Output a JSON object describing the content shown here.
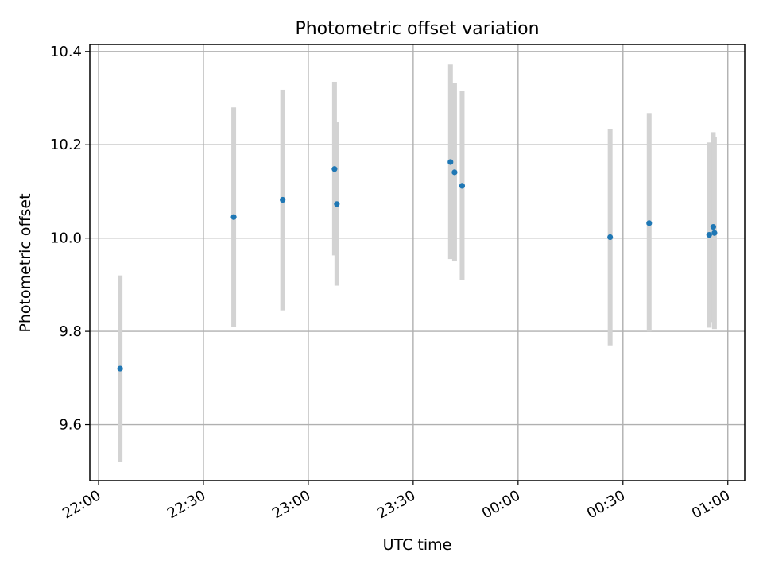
{
  "chart_data": {
    "type": "scatter",
    "title": "Photometric offset variation",
    "xlabel": "UTC time",
    "ylabel": "Photometric offset",
    "x_axis_type": "time",
    "x_ticks": [
      "22:00",
      "22:30",
      "23:00",
      "23:30",
      "00:00",
      "00:30",
      "01:00"
    ],
    "xlim": [
      "21:57:30",
      "01:04:50"
    ],
    "ylim": [
      9.48,
      10.415
    ],
    "y_ticks": [
      9.6,
      9.8,
      10.0,
      10.2,
      10.4
    ],
    "y_tick_labels": [
      "9.6",
      "9.8",
      "10.0",
      "10.2",
      "10.4"
    ],
    "grid": true,
    "series": [
      {
        "marker_color": "#1f77b4",
        "errorbar_color": "#d3d3d3",
        "points": [
          {
            "x": "22:06:10",
            "y": 9.72,
            "y_low": 9.52,
            "y_high": 9.92
          },
          {
            "x": "22:38:40",
            "y": 10.045,
            "y_low": 9.81,
            "y_high": 10.28
          },
          {
            "x": "22:52:40",
            "y": 10.082,
            "y_low": 9.845,
            "y_high": 10.318
          },
          {
            "x": "23:07:30",
            "y": 10.148,
            "y_low": 9.963,
            "y_high": 10.335
          },
          {
            "x": "23:08:10",
            "y": 10.073,
            "y_low": 9.898,
            "y_high": 10.248
          },
          {
            "x": "23:40:40",
            "y": 10.163,
            "y_low": 9.955,
            "y_high": 10.372
          },
          {
            "x": "23:41:50",
            "y": 10.141,
            "y_low": 9.95,
            "y_high": 10.332
          },
          {
            "x": "23:44:00",
            "y": 10.112,
            "y_low": 9.91,
            "y_high": 10.315
          },
          {
            "x": "00:26:20",
            "y": 10.002,
            "y_low": 9.77,
            "y_high": 10.234
          },
          {
            "x": "00:37:30",
            "y": 10.032,
            "y_low": 9.8,
            "y_high": 10.268
          },
          {
            "x": "00:54:40",
            "y": 10.007,
            "y_low": 9.808,
            "y_high": 10.205
          },
          {
            "x": "00:55:50",
            "y": 10.024,
            "y_low": 9.82,
            "y_high": 10.227
          },
          {
            "x": "00:56:10",
            "y": 10.011,
            "y_low": 9.805,
            "y_high": 10.217
          }
        ]
      }
    ]
  }
}
